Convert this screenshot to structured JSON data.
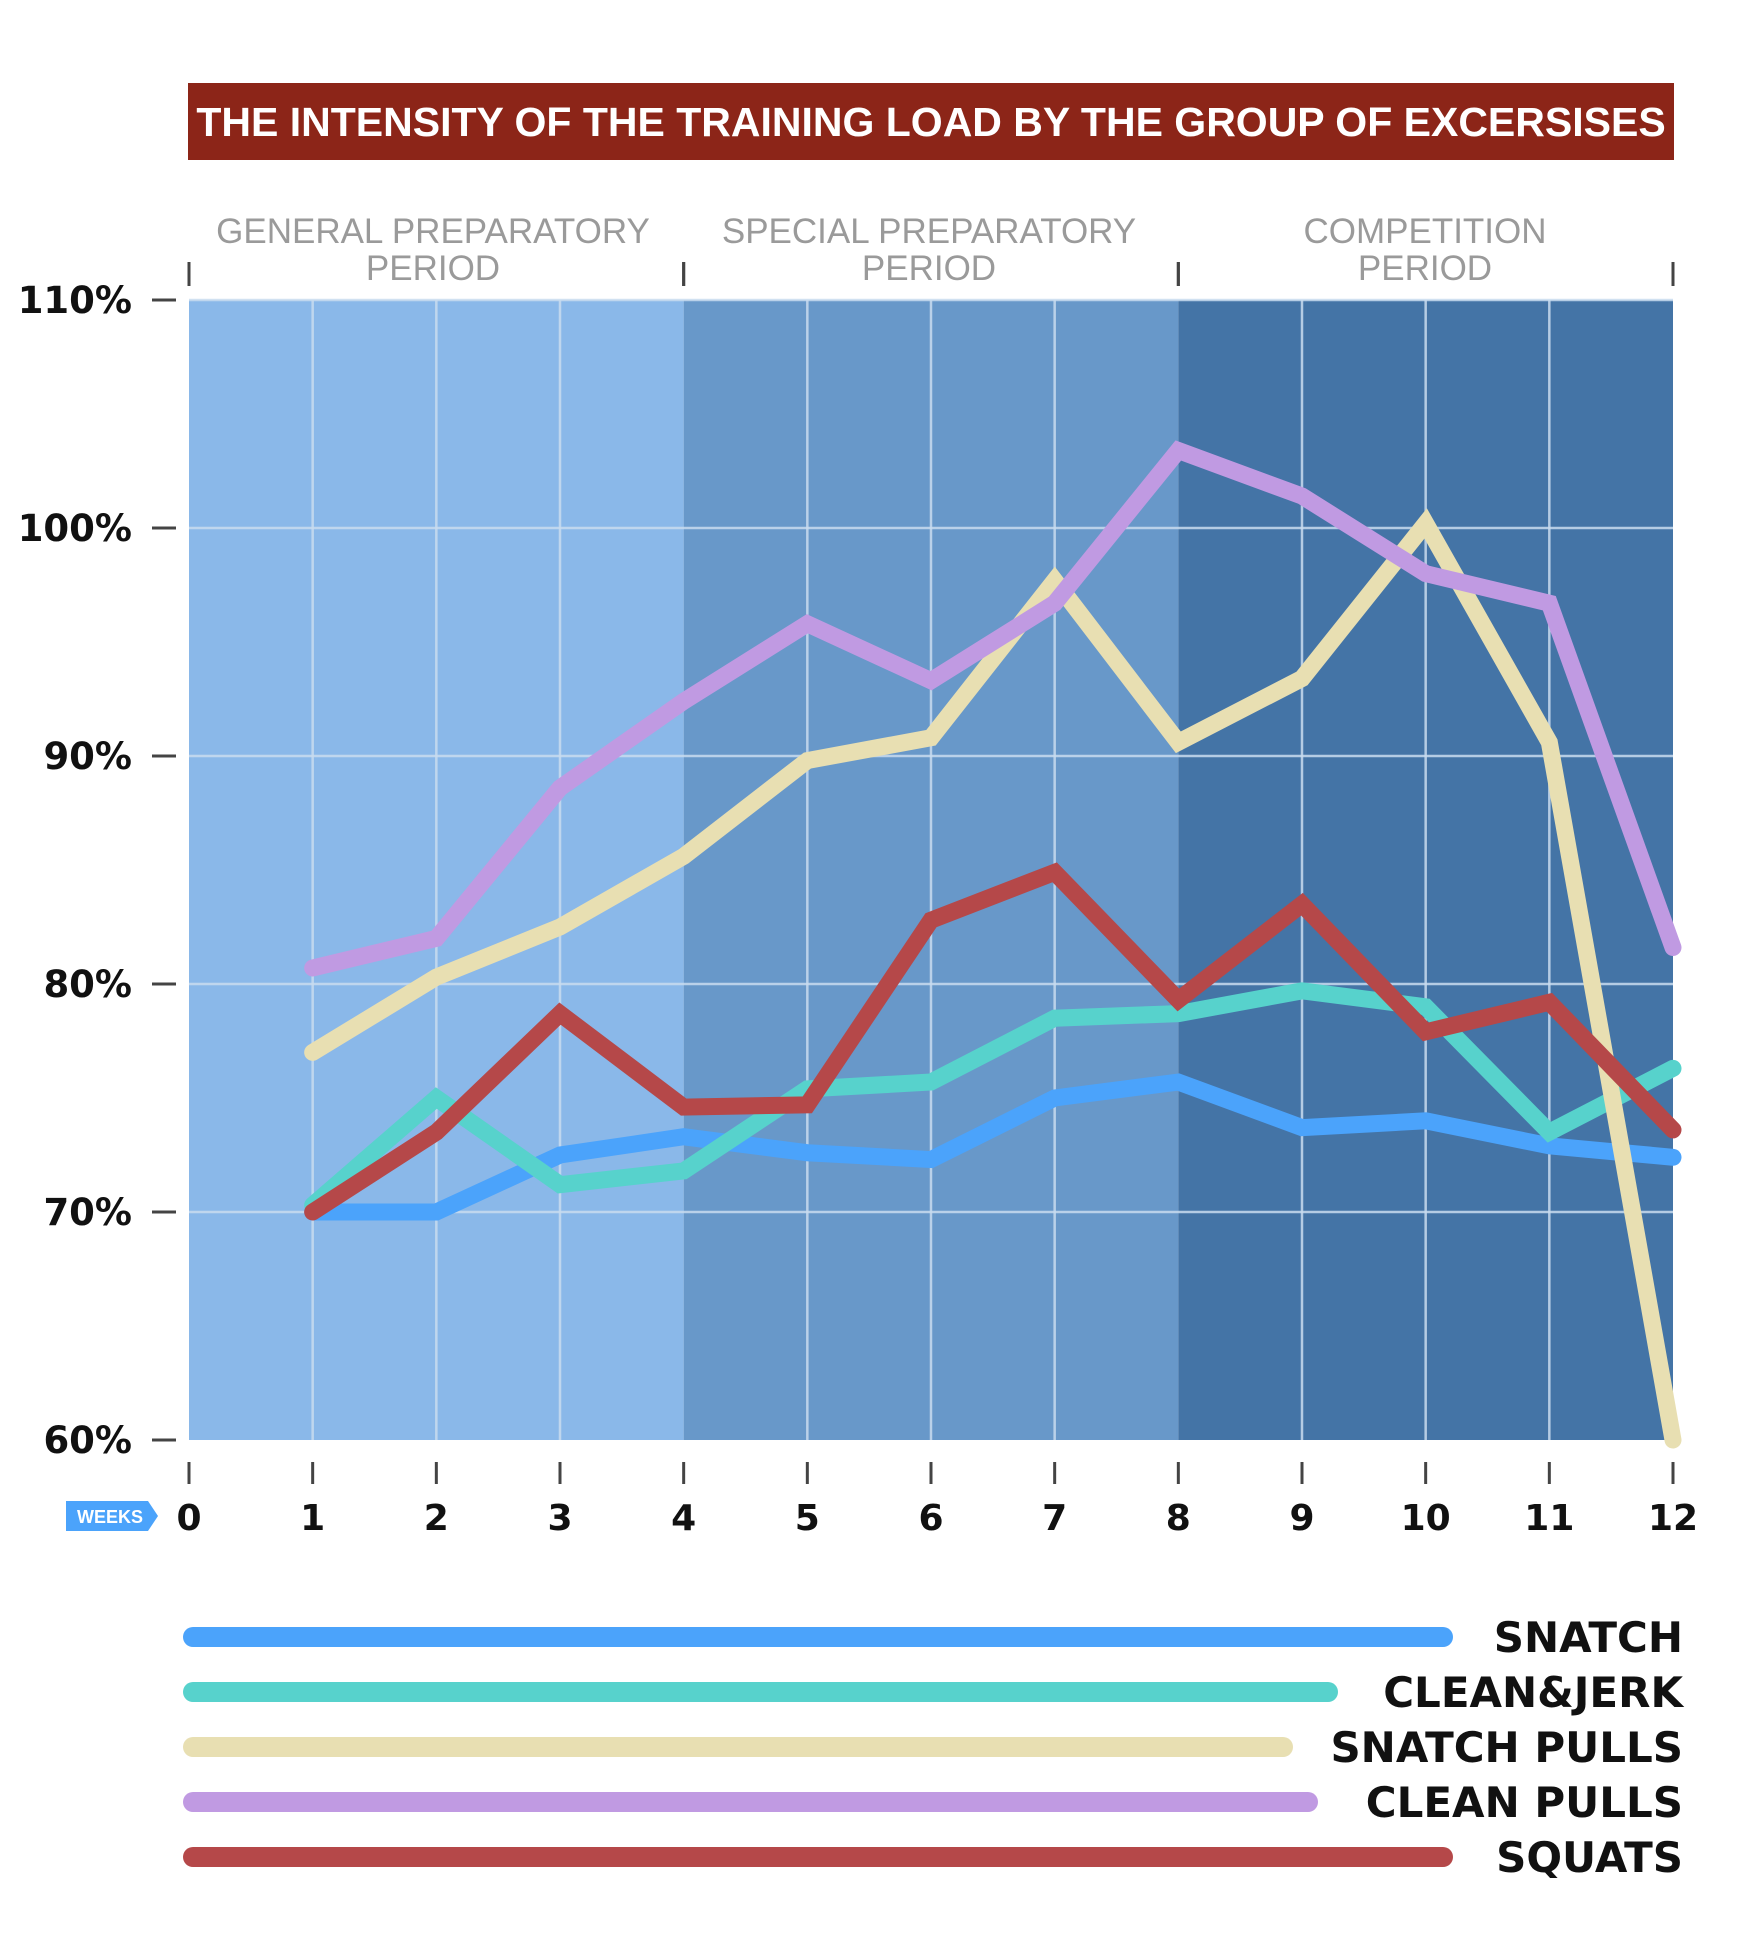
{
  "chart_data": {
    "type": "line",
    "title": "THE INTENSITY OF THE TRAINING LOAD BY THE GROUP OF EXCERSISES",
    "xlabel": "WEEKS",
    "ylabel": "",
    "x": [
      1,
      2,
      3,
      4,
      5,
      6,
      7,
      8,
      9,
      10,
      11,
      12
    ],
    "xticks": [
      "0",
      "1",
      "2",
      "3",
      "4",
      "5",
      "6",
      "7",
      "8",
      "9",
      "10",
      "11",
      "12"
    ],
    "xlim": [
      0,
      12
    ],
    "ylim": [
      60,
      110
    ],
    "yticks": [
      60,
      70,
      80,
      90,
      100,
      110
    ],
    "ytick_labels": [
      "60%",
      "70%",
      "80%",
      "90%",
      "100%",
      "110%"
    ],
    "grid": true,
    "legend_position": "bottom",
    "periods": [
      {
        "line1": "GENERAL PREPARATORY",
        "line2": "PERIOD",
        "start": 0,
        "end": 4,
        "color": "#8ab8e9"
      },
      {
        "line1": "SPECIAL PREPARATORY",
        "line2": "PERIOD",
        "start": 4,
        "end": 8,
        "color": "#6898c9"
      },
      {
        "line1": "COMPETITION",
        "line2": "PERIOD",
        "start": 8,
        "end": 12,
        "color": "#4474a6"
      }
    ],
    "series": [
      {
        "name": "SNATCH",
        "color": "#4ba3fb",
        "values": [
          70,
          70,
          72.5,
          73.3,
          72.6,
          72.3,
          75,
          75.7,
          73.7,
          74,
          72.9,
          72.4
        ]
      },
      {
        "name": "CLEAN&JERK",
        "color": "#57d2cc",
        "values": [
          70.3,
          75,
          71.2,
          71.8,
          75.4,
          75.7,
          78.5,
          78.7,
          79.7,
          79,
          73.5,
          76.3
        ]
      },
      {
        "name": "SNATCH PULLS",
        "color": "#e8dfb2",
        "values": [
          77,
          80.3,
          82.5,
          85.6,
          89.8,
          90.8,
          97.7,
          90.6,
          93.4,
          100.2,
          90.6,
          60
        ]
      },
      {
        "name": "CLEAN PULLS",
        "color": "#c09ae2",
        "values": [
          80.7,
          82,
          88.6,
          92.4,
          95.8,
          93.3,
          96.7,
          103.4,
          101.4,
          98,
          96.7,
          81.6
        ]
      },
      {
        "name": "SQUATS",
        "color": "#b54849",
        "values": [
          70,
          73.5,
          78.7,
          74.6,
          74.7,
          82.8,
          84.9,
          79.3,
          83.5,
          77.9,
          79.2,
          73.6
        ]
      }
    ]
  },
  "colors": {
    "title_bg": "#8c2518",
    "grid": "#c9dcef",
    "axis": "#444444",
    "weeks_badge": "#4ba3fb"
  }
}
